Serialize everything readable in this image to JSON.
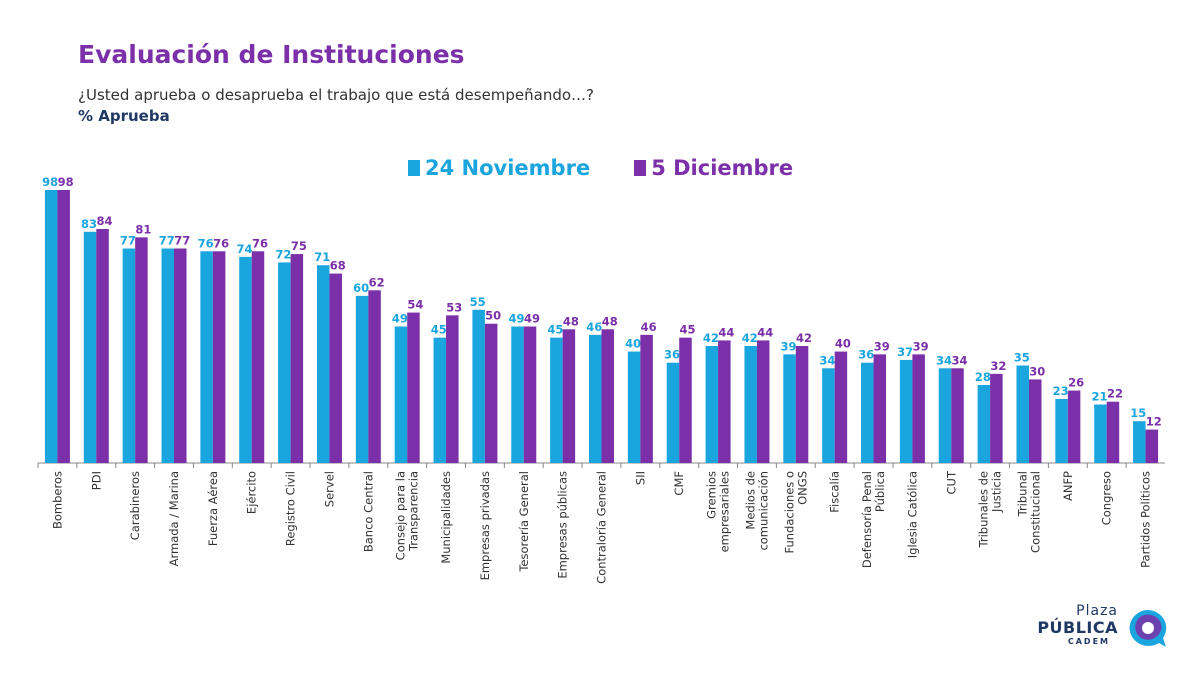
{
  "header": {
    "title": "Evaluación de Instituciones",
    "subtitle": "¿Usted aprueba o desaprueba el trabajo que está desempeñando…?",
    "metric": "% Aprueba"
  },
  "logo": {
    "line1": "Plaza",
    "line2": "PÚBLICA",
    "line3": "CADEM"
  },
  "colors": {
    "series1": "#1BA5DF",
    "series2": "#7B2FA8",
    "title": "#7B2FA8",
    "metric": "#1F3864",
    "axis": "#888888"
  },
  "chart_data": {
    "type": "bar",
    "title": "Evaluación de Instituciones",
    "ylabel": "% Aprueba",
    "ylim": [
      0,
      100
    ],
    "grid": false,
    "legend_position": "top-center",
    "categories": [
      "Bomberos",
      "PDI",
      "Carabineros",
      "Armada / Marina",
      "Fuerza Aérea",
      "Ejército",
      "Registro Civil",
      "Servel",
      "Banco Central",
      "Consejo para la Transparencia",
      "Municipalidades",
      "Empresas privadas",
      "Tesorería General",
      "Empresas públicas",
      "Contraloría General",
      "SII",
      "CMF",
      "Gremios empresariales",
      "Medios de comunicación",
      "Fundaciones o ONGS",
      "Fiscalía",
      "Defensoría Penal Pública",
      "Iglesia Católica",
      "CUT",
      "Tribunales de Justicia",
      "Tribunal Constitucional",
      "ANFP",
      "Congreso",
      "Partidos Políticos"
    ],
    "category_lines": [
      [
        "Bomberos"
      ],
      [
        "PDI"
      ],
      [
        "Carabineros"
      ],
      [
        "Armada / Marina"
      ],
      [
        "Fuerza Aérea"
      ],
      [
        "Ejército"
      ],
      [
        "Registro Civil"
      ],
      [
        "Servel"
      ],
      [
        "Banco Central"
      ],
      [
        "Consejo para la",
        "Transparencia"
      ],
      [
        "Municipalidades"
      ],
      [
        "Empresas privadas"
      ],
      [
        "Tesorería General"
      ],
      [
        "Empresas públicas"
      ],
      [
        "Contraloría General"
      ],
      [
        "SII"
      ],
      [
        "CMF"
      ],
      [
        "Gremios",
        "empresariales"
      ],
      [
        "Medios de",
        "comunicación"
      ],
      [
        "Fundaciones o",
        "ONGS"
      ],
      [
        "Fiscalía"
      ],
      [
        "Defensoría Penal",
        "Pública"
      ],
      [
        "Iglesia Católica"
      ],
      [
        "CUT"
      ],
      [
        "Tribunales de",
        "Justicia"
      ],
      [
        "Tribunal",
        "Constitucional"
      ],
      [
        "ANFP"
      ],
      [
        "Congreso"
      ],
      [
        "Partidos Políticos"
      ]
    ],
    "series": [
      {
        "name": "24 Noviembre",
        "color": "#1BA5DF",
        "values": [
          98,
          83,
          77,
          77,
          76,
          74,
          72,
          71,
          60,
          49,
          45,
          55,
          49,
          45,
          46,
          40,
          36,
          42,
          42,
          39,
          34,
          36,
          37,
          34,
          28,
          35,
          23,
          21,
          15
        ]
      },
      {
        "name": "5 Diciembre",
        "color": "#7B2FA8",
        "values": [
          98,
          84,
          81,
          77,
          76,
          76,
          75,
          68,
          62,
          54,
          53,
          50,
          49,
          48,
          48,
          46,
          45,
          44,
          44,
          42,
          40,
          39,
          39,
          34,
          32,
          30,
          26,
          22,
          12
        ]
      }
    ]
  }
}
